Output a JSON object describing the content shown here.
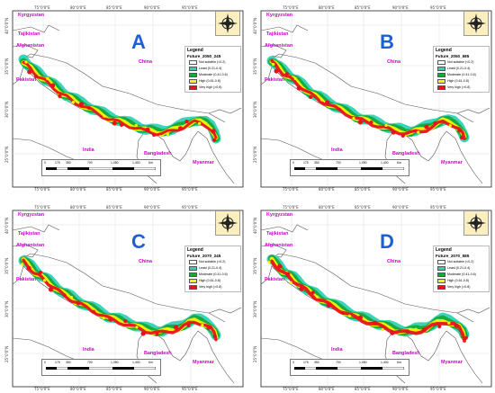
{
  "x_ticks": [
    "75°0'0\"E",
    "80°0'0\"E",
    "85°0'0\"E",
    "90°0'0\"E",
    "95°0'0\"E"
  ],
  "y_ticks": [
    "40°0'0\"N",
    "35°0'0\"N",
    "30°0'0\"N",
    "25°0'0\"N"
  ],
  "countries": {
    "kyrgyzstan": "Kyrgyzstan",
    "tajikistan": "Tajikistan",
    "afghanistan": "Afghanistan",
    "pakistan": "Pakistan",
    "china": "China",
    "india": "India",
    "bangladesh": "Bangladesh",
    "myanmar": "Myanmar"
  },
  "legend": {
    "title": "Legend",
    "classes": [
      {
        "label": "Not suitable (<0.2)",
        "color": "#ffffff"
      },
      {
        "label": "Least (0.21-0.4)",
        "color": "#2fd3b4"
      },
      {
        "label": "Moderate (0.41-0.6)",
        "color": "#16a83a"
      },
      {
        "label": "High (0.61-0.8)",
        "color": "#f5f500"
      },
      {
        "label": "Very high (>0.8)",
        "color": "#e5141c"
      }
    ]
  },
  "scale": {
    "ticks": [
      "0",
      "175",
      "350",
      "700",
      "1,050",
      "1,400"
    ],
    "unit": "Km"
  },
  "panels": [
    {
      "letter": "A",
      "scenario": "Future_2050_245"
    },
    {
      "letter": "B",
      "scenario": "Future_2050_585"
    },
    {
      "letter": "C",
      "scenario": "Future_2070_245"
    },
    {
      "letter": "D",
      "scenario": "Future_2070_585"
    }
  ]
}
